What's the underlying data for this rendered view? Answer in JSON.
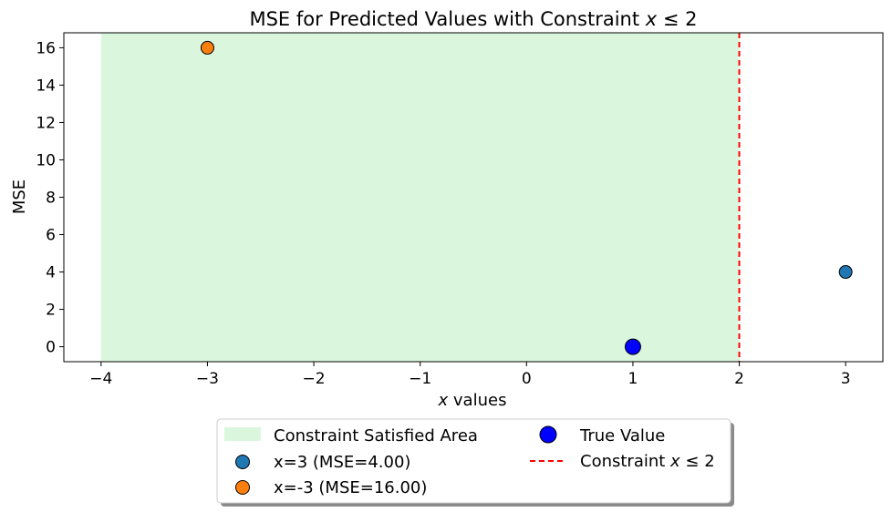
{
  "chart_data": {
    "type": "scatter",
    "title": "MSE for Predicted Values with Constraint x ≤ 2",
    "xlabel": "x values",
    "ylabel": "MSE",
    "xlim": [
      -4.35,
      3.35
    ],
    "ylim": [
      -0.8,
      16.8
    ],
    "xticks": [
      -4,
      -3,
      -2,
      -1,
      0,
      1,
      2,
      3
    ],
    "yticks": [
      0,
      2,
      4,
      6,
      8,
      10,
      12,
      14,
      16
    ],
    "grid": false,
    "legend_position": "below-center",
    "shaded_region": {
      "name": "Constraint Satisfied Area",
      "x_range": [
        -4,
        2
      ],
      "color": "#daf7de"
    },
    "constraint_line": {
      "name": "Constraint x ≤ 2",
      "x": 2,
      "color": "#ff0000",
      "style": "dashed"
    },
    "series": [
      {
        "name": "x=3 (MSE=4.00)",
        "x": 3,
        "y": 4,
        "color": "#1f77b4",
        "size": "normal"
      },
      {
        "name": "x=-3 (MSE=16.00)",
        "x": -3,
        "y": 16,
        "color": "#ff7f0e",
        "size": "normal"
      },
      {
        "name": "True Value",
        "x": 1,
        "y": 0,
        "color": "#0000ff",
        "size": "large"
      }
    ],
    "legend": [
      "Constraint Satisfied Area",
      "x=3 (MSE=4.00)",
      "x=-3 (MSE=16.00)",
      "True Value",
      "Constraint x ≤ 2"
    ]
  }
}
